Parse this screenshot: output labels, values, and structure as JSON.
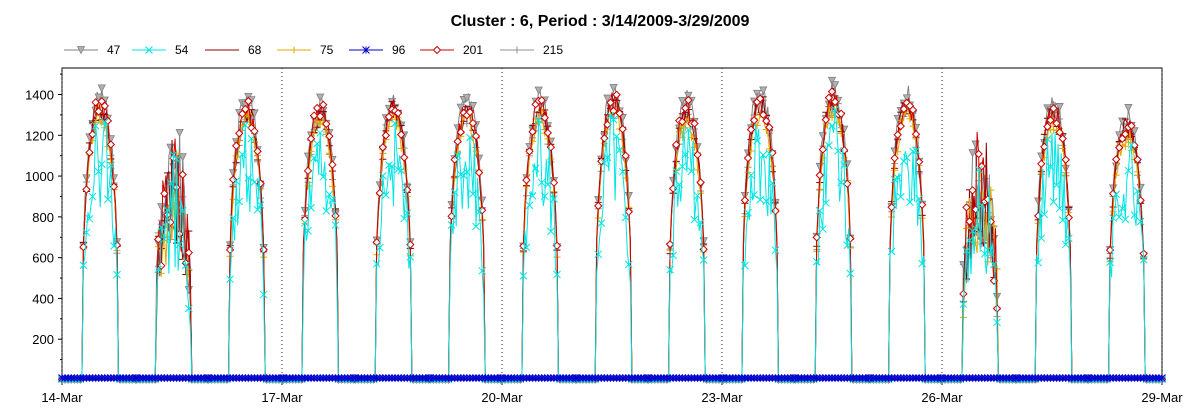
{
  "chart_data": {
    "type": "line",
    "title": "Cluster : 6, Period : 3/14/2009-3/29/2009",
    "xlabel": "",
    "ylabel": "",
    "x_range": [
      "2009-03-14",
      "2009-03-29"
    ],
    "x_ticks": [
      "14-Mar",
      "17-Mar",
      "20-Mar",
      "23-Mar",
      "26-Mar",
      "29-Mar"
    ],
    "ylim": [
      0,
      1530
    ],
    "y_ticks": [
      200,
      400,
      600,
      800,
      1000,
      1200,
      1400
    ],
    "legend_position": "top-left",
    "daylight_hours": {
      "start": 6.5,
      "end": 18.5
    },
    "daily_peaks": [
      {
        "date": "3/14",
        "peak": 1400
      },
      {
        "date": "3/15",
        "peak": 1250
      },
      {
        "date": "3/16",
        "peak": 1380
      },
      {
        "date": "3/17",
        "peak": 1370
      },
      {
        "date": "3/18",
        "peak": 1390
      },
      {
        "date": "3/19",
        "peak": 1380
      },
      {
        "date": "3/20",
        "peak": 1390
      },
      {
        "date": "3/21",
        "peak": 1420
      },
      {
        "date": "3/22",
        "peak": 1380
      },
      {
        "date": "3/23",
        "peak": 1420
      },
      {
        "date": "3/24",
        "peak": 1440
      },
      {
        "date": "3/25",
        "peak": 1420
      },
      {
        "date": "3/26",
        "peak": 1250
      },
      {
        "date": "3/27",
        "peak": 1380
      },
      {
        "date": "3/28",
        "peak": 1300
      }
    ],
    "series": [
      {
        "name": "47",
        "color": "#808080",
        "marker": "triangle-down",
        "scale": 1.03
      },
      {
        "name": "54",
        "color": "#00e5e5",
        "marker": "x",
        "scale": 0.93
      },
      {
        "name": "68",
        "color": "#8b0000",
        "marker": "dash",
        "scale": 0.99
      },
      {
        "name": "75",
        "color": "#e6a800",
        "marker": "plus",
        "scale": 0.96
      },
      {
        "name": "96",
        "color": "#0000cc",
        "marker": "asterisk",
        "scale": 0.0,
        "constant": 10
      },
      {
        "name": "201",
        "color": "#cc0000",
        "marker": "diamond",
        "scale": 1.0
      },
      {
        "name": "215",
        "color": "#909090",
        "marker": "plus",
        "scale": 0.98
      }
    ]
  }
}
